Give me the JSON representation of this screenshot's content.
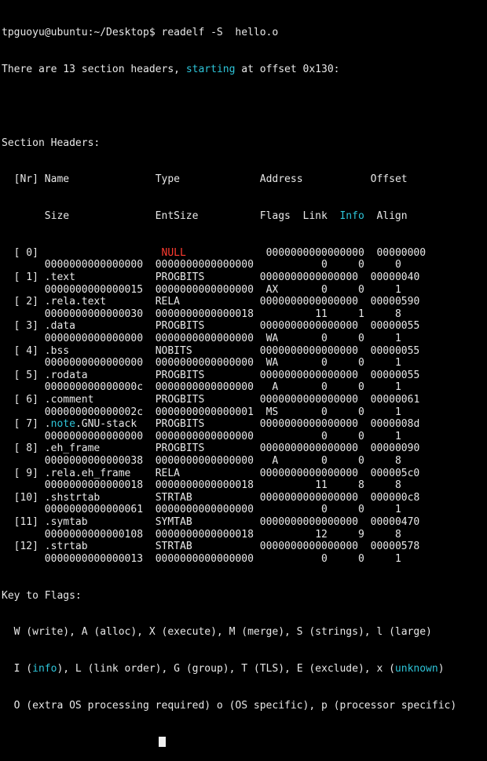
{
  "prompt": {
    "text": "tpguoyu@ubuntu:~/Desktop$ readelf -S  hello.o"
  },
  "summary": {
    "before": "There are 13 section headers, ",
    "highlight": "starting",
    "after": " at offset 0x130:"
  },
  "section_headers": {
    "title": "Section Headers:",
    "header1": {
      "nr": "  [Nr]",
      "name": " Name              ",
      "type": "Type             ",
      "address": "Address           ",
      "offset": "Offset"
    },
    "header2": {
      "size": "       Size              ",
      "entsize": "EntSize          ",
      "flags": "Flags  Link  ",
      "info": "Info",
      "align": "  Align"
    },
    "rows": [
      {
        "nr": "  [ 0]",
        "name": "                  ",
        "name_prefix": "",
        "type": "NULL",
        "address": "0000000000000000",
        "offset": "00000000",
        "size": "0000000000000000",
        "entsize": "0000000000000000",
        "flags": "",
        "link": "0",
        "info": "0",
        "align": "0"
      },
      {
        "nr": "  [ 1]",
        "name": ".text",
        "name_prefix": "",
        "type": "PROGBITS",
        "address": "0000000000000000",
        "offset": "00000040",
        "size": "0000000000000015",
        "entsize": "0000000000000000",
        "flags": "AX",
        "link": "0",
        "info": "0",
        "align": "1"
      },
      {
        "nr": "  [ 2]",
        "name": ".rela.text",
        "name_prefix": "",
        "type": "RELA",
        "address": "0000000000000000",
        "offset": "00000590",
        "size": "0000000000000030",
        "entsize": "0000000000000018",
        "flags": "",
        "link": "11",
        "info": "1",
        "align": "8"
      },
      {
        "nr": "  [ 3]",
        "name": ".data",
        "name_prefix": "",
        "type": "PROGBITS",
        "address": "0000000000000000",
        "offset": "00000055",
        "size": "0000000000000000",
        "entsize": "0000000000000000",
        "flags": "WA",
        "link": "0",
        "info": "0",
        "align": "1"
      },
      {
        "nr": "  [ 4]",
        "name": ".bss",
        "name_prefix": "",
        "type": "NOBITS",
        "address": "0000000000000000",
        "offset": "00000055",
        "size": "0000000000000000",
        "entsize": "0000000000000000",
        "flags": "WA",
        "link": "0",
        "info": "0",
        "align": "1"
      },
      {
        "nr": "  [ 5]",
        "name": ".rodata",
        "name_prefix": "",
        "type": "PROGBITS",
        "address": "0000000000000000",
        "offset": "00000055",
        "size": "000000000000000c",
        "entsize": "0000000000000000",
        "flags": "A",
        "link": "0",
        "info": "0",
        "align": "1"
      },
      {
        "nr": "  [ 6]",
        "name": ".comment",
        "name_prefix": "",
        "type": "PROGBITS",
        "address": "0000000000000000",
        "offset": "00000061",
        "size": "000000000000002c",
        "entsize": "0000000000000001",
        "flags": "MS",
        "link": "0",
        "info": "0",
        "align": "1"
      },
      {
        "nr": "  [ 7]",
        "name": ".GNU-stack",
        "name_prefix": "note",
        "type": "PROGBITS",
        "address": "0000000000000000",
        "offset": "0000008d",
        "size": "0000000000000000",
        "entsize": "0000000000000000",
        "flags": "",
        "link": "0",
        "info": "0",
        "align": "1"
      },
      {
        "nr": "  [ 8]",
        "name": ".eh_frame",
        "name_prefix": "",
        "type": "PROGBITS",
        "address": "0000000000000000",
        "offset": "00000090",
        "size": "0000000000000038",
        "entsize": "0000000000000000",
        "flags": "A",
        "link": "0",
        "info": "0",
        "align": "8"
      },
      {
        "nr": "  [ 9]",
        "name": ".rela.eh_frame",
        "name_prefix": "",
        "type": "RELA",
        "address": "0000000000000000",
        "offset": "000005c0",
        "size": "0000000000000018",
        "entsize": "0000000000000018",
        "flags": "",
        "link": "11",
        "info": "8",
        "align": "8"
      },
      {
        "nr": "  [10]",
        "name": ".shstrtab",
        "name_prefix": "",
        "type": "STRTAB",
        "address": "0000000000000000",
        "offset": "000000c8",
        "size": "0000000000000061",
        "entsize": "0000000000000000",
        "flags": "",
        "link": "0",
        "info": "0",
        "align": "1"
      },
      {
        "nr": "  [11]",
        "name": ".symtab",
        "name_prefix": "",
        "type": "SYMTAB",
        "address": "0000000000000000",
        "offset": "00000470",
        "size": "0000000000000108",
        "entsize": "0000000000000018",
        "flags": "",
        "link": "12",
        "info": "9",
        "align": "8"
      },
      {
        "nr": "  [12]",
        "name": ".strtab",
        "name_prefix": "",
        "type": "STRTAB",
        "address": "0000000000000000",
        "offset": "00000578",
        "size": "0000000000000013",
        "entsize": "0000000000000000",
        "flags": "",
        "link": "0",
        "info": "0",
        "align": "1"
      }
    ]
  },
  "flags_key": {
    "title": "Key to Flags:",
    "line1": "  W (write), A (alloc), X (execute), M (merge), S (strings), l (large)",
    "line2_a": "  I (",
    "line2_info": "info",
    "line2_b": "), L (link order), G (group), T (TLS), E (exclude), x (",
    "line2_unknown": "unknown",
    "line2_c": ")",
    "line3": "  O (extra OS processing required) o (OS specific), p (processor specific)"
  },
  "colors": {
    "background": "#000000",
    "foreground": "#e8e8e8",
    "highlight_blue": "#2ec5d9",
    "highlight_red": "#ff3b30"
  }
}
